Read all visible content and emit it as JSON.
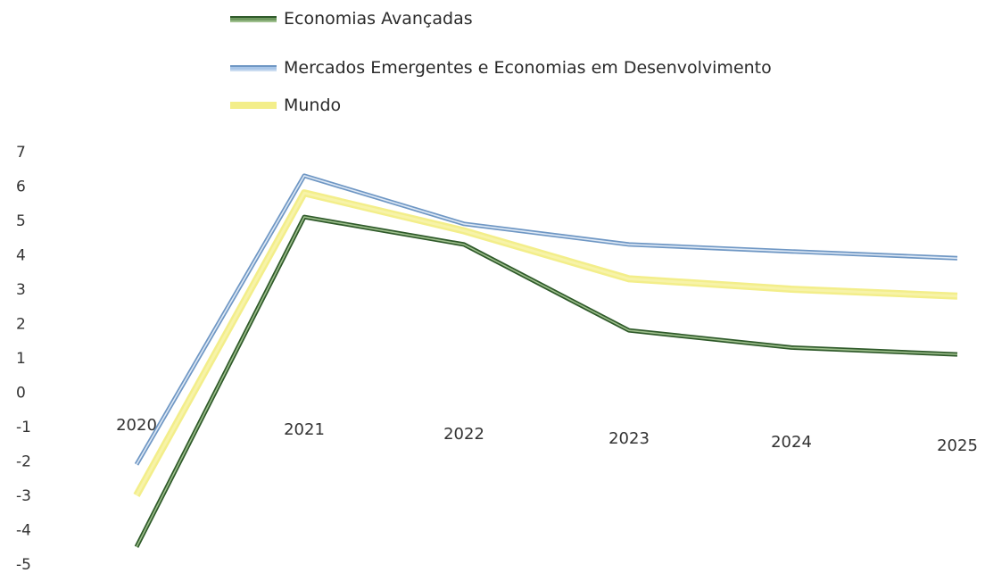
{
  "chart_data": {
    "type": "line",
    "title": "",
    "xlabel": "",
    "ylabel": "",
    "categories": [
      "2020",
      "2021",
      "2022",
      "2023",
      "2024",
      "2025"
    ],
    "y_ticks": [
      "7",
      "6",
      "5",
      "4",
      "3",
      "2",
      "1",
      "0",
      "-1",
      "-2",
      "-3",
      "-4",
      "-5"
    ],
    "ylim": [
      -5,
      7
    ],
    "grid": false,
    "legend_position": "top-left",
    "series": [
      {
        "name": "Economias Avançadas",
        "color": "#5a8a4a",
        "values": [
          -4.5,
          5.1,
          4.3,
          1.8,
          1.3,
          1.1
        ]
      },
      {
        "name": "Mercados Emergentes e Economias em Desenvolvimento",
        "color": "#8fb2d8",
        "values": [
          -2.1,
          6.3,
          4.9,
          4.3,
          4.1,
          3.9
        ]
      },
      {
        "name": "Mundo",
        "color": "#f3ee8a",
        "values": [
          -3.0,
          5.8,
          4.7,
          3.3,
          3.0,
          2.8
        ]
      }
    ]
  }
}
